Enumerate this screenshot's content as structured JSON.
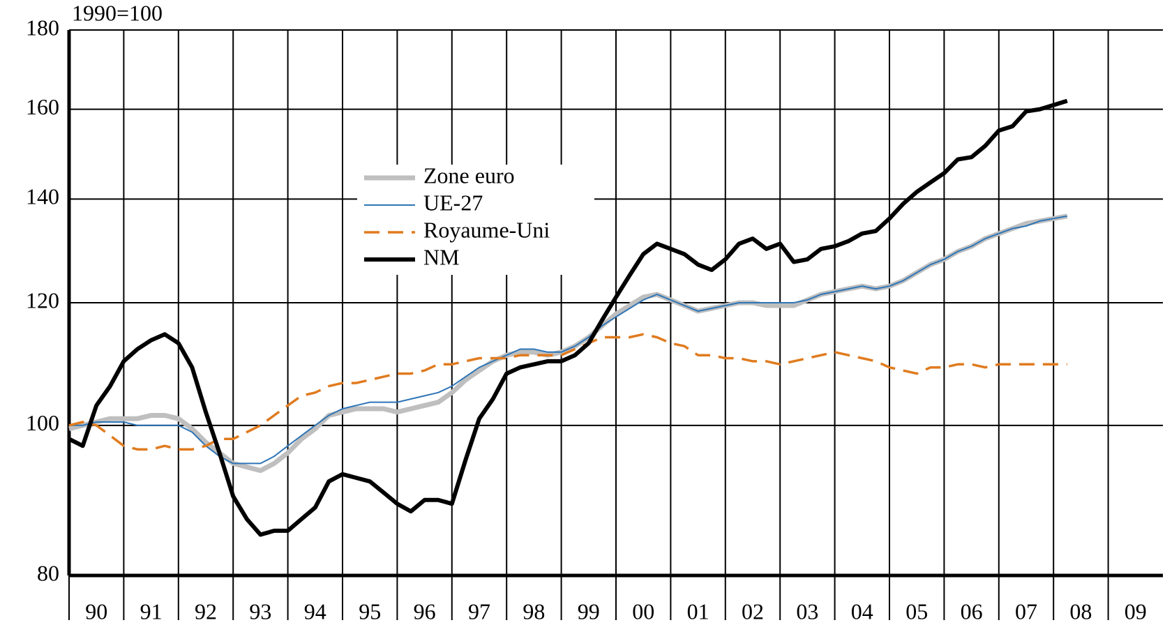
{
  "chart_data": {
    "type": "line",
    "y_unit_label": "1990=100",
    "log_scale": true,
    "grid": true,
    "legend": "center",
    "categories": [
      "90",
      "91",
      "92",
      "93",
      "94",
      "95",
      "96",
      "97",
      "98",
      "99",
      "00",
      "01",
      "02",
      "03",
      "04",
      "05",
      "06",
      "07",
      "08",
      "09"
    ],
    "xlim": [
      1990,
      2010
    ],
    "ylim": [
      80,
      180
    ],
    "yticks": [
      80,
      100,
      120,
      140,
      160,
      180
    ],
    "x": [
      1990,
      1990.25,
      1990.5,
      1990.75,
      1991,
      1991.25,
      1991.5,
      1991.75,
      1992,
      1992.25,
      1992.5,
      1992.75,
      1993,
      1993.25,
      1993.5,
      1993.75,
      1994,
      1994.25,
      1994.5,
      1994.75,
      1995,
      1995.25,
      1995.5,
      1995.75,
      1996,
      1996.25,
      1996.5,
      1996.75,
      1997,
      1997.25,
      1997.5,
      1997.75,
      1998,
      1998.25,
      1998.5,
      1998.75,
      1999,
      1999.25,
      1999.5,
      1999.75,
      2000,
      2000.25,
      2000.5,
      2000.75,
      2001,
      2001.25,
      2001.5,
      2001.75,
      2002,
      2002.25,
      2002.5,
      2002.75,
      2003,
      2003.25,
      2003.5,
      2003.75,
      2004,
      2004.25,
      2004.5,
      2004.75,
      2005,
      2005.25,
      2005.5,
      2005.75,
      2006,
      2006.25,
      2006.5,
      2006.75,
      2007,
      2007.25,
      2007.5,
      2007.75,
      2008,
      2008.25
    ],
    "series": [
      {
        "name": "Zone euro",
        "color": "#bfbfbf",
        "width": 7,
        "dash": "none",
        "values": [
          99.5,
          100,
          100.5,
          101,
          101,
          101,
          101.5,
          101.5,
          101,
          99.5,
          97.5,
          96,
          94.5,
          94,
          93.5,
          94.5,
          96,
          98,
          99.5,
          101.5,
          102,
          102.5,
          102.5,
          102.5,
          102,
          102.5,
          103,
          103.5,
          105,
          107,
          108.5,
          110,
          111,
          111.5,
          111.5,
          111,
          111.5,
          112.5,
          114,
          116,
          118,
          119.5,
          121,
          121.5,
          120.5,
          119.5,
          118.5,
          119,
          119.5,
          120,
          120,
          119.5,
          119.5,
          119.5,
          120.5,
          121.5,
          122,
          122.5,
          123,
          122.5,
          123,
          124,
          125.5,
          127,
          128,
          129.5,
          130.5,
          132,
          133,
          134,
          135,
          135.5,
          136,
          136.5
        ]
      },
      {
        "name": "UE-27",
        "color": "#2e75b6",
        "width": 2,
        "dash": "none",
        "values": [
          100,
          100,
          100.5,
          100.5,
          100.5,
          100,
          100,
          100,
          100,
          99,
          97,
          95.5,
          94.5,
          94.5,
          94.5,
          95.5,
          97,
          98.5,
          100,
          101.5,
          102.5,
          103,
          103.5,
          103.5,
          103.5,
          104,
          104.5,
          105,
          106,
          107.5,
          109,
          110,
          111,
          112,
          112,
          111.5,
          111.5,
          112.5,
          114,
          116,
          117.5,
          119,
          120.5,
          121.5,
          120.5,
          119.5,
          118.5,
          119,
          119.5,
          120,
          120,
          120,
          120,
          120,
          120.5,
          121.5,
          122,
          122.5,
          123,
          122.5,
          123,
          124,
          125.5,
          127,
          128,
          129.5,
          130.5,
          132,
          133,
          134,
          134.5,
          135.5,
          136,
          136.5
        ]
      },
      {
        "name": "Royaume-Uni",
        "color": "#e07b1f",
        "width": 3.5,
        "dash": "22 12",
        "values": [
          100,
          100.5,
          100,
          98.5,
          97,
          96.5,
          96.5,
          97,
          96.5,
          96.5,
          97,
          98,
          98,
          99,
          100,
          101.5,
          103,
          104.5,
          105,
          106,
          106.5,
          106.5,
          107,
          107.5,
          108,
          108,
          108.5,
          109.5,
          109.5,
          110,
          110.5,
          110.5,
          110.5,
          111,
          111,
          111,
          111,
          112,
          113,
          114,
          114,
          114,
          114.5,
          114,
          113,
          112.5,
          111,
          111,
          110.5,
          110.5,
          110,
          110,
          109.5,
          110,
          110.5,
          111,
          111.5,
          111,
          110.5,
          110,
          109,
          108.5,
          108,
          109,
          109,
          109.5,
          109.5,
          109,
          109.5,
          109.5,
          109.5,
          109.5,
          109.5,
          109.5
        ]
      },
      {
        "name": "NM",
        "color": "#000000",
        "width": 6,
        "dash": "none",
        "values": [
          98,
          97,
          103,
          106,
          110,
          112,
          113.5,
          114.5,
          113,
          109,
          102,
          96,
          90,
          87,
          85,
          85.5,
          85.5,
          87,
          88.5,
          92,
          93,
          92.5,
          92,
          90.5,
          89,
          88,
          89.5,
          89.5,
          89,
          95,
          101,
          104,
          108,
          109,
          109.5,
          110,
          110,
          111,
          113,
          117,
          121,
          125,
          129,
          131,
          130,
          129,
          127,
          126,
          128,
          131,
          132,
          130,
          131,
          127.5,
          128,
          130,
          130.5,
          131.5,
          133,
          133.5,
          136,
          139,
          141.5,
          143.5,
          145.5,
          148.5,
          149,
          151.5,
          155,
          156,
          159.5,
          160,
          161,
          162
        ]
      }
    ]
  }
}
